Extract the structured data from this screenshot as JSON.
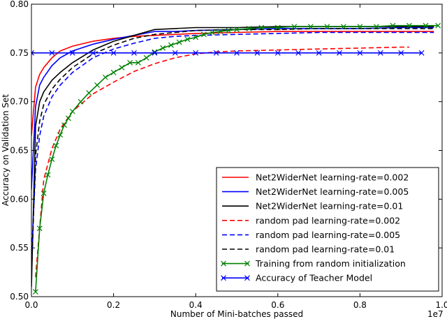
{
  "chart_data": {
    "type": "line",
    "title": "",
    "xlabel": "Number of Mini-batches passed",
    "ylabel": "Accuracy on Validation Set",
    "x_offset_label": "1e7",
    "xlim": [
      0.0,
      1.0
    ],
    "ylim": [
      0.5,
      0.8
    ],
    "x_scale_factor": 10000000,
    "xticks": [
      "0.0",
      "0.2",
      "0.4",
      "0.6",
      "0.8",
      "1.0"
    ],
    "yticks": [
      "0.50",
      "0.55",
      "0.60",
      "0.65",
      "0.70",
      "0.75",
      "0.80"
    ],
    "grid": false,
    "legend_position": "lower-right",
    "series": [
      {
        "name": "Net2WiderNet learning-rate=0.002",
        "color": "#ff0000",
        "dash": "solid",
        "marker": "none",
        "x": [
          0.0,
          0.01,
          0.02,
          0.03,
          0.05,
          0.07,
          0.1,
          0.15,
          0.2,
          0.25,
          0.3,
          0.35,
          0.4,
          0.5,
          0.6,
          0.7,
          0.8,
          0.9,
          0.98
        ],
        "y": [
          0.665,
          0.715,
          0.728,
          0.735,
          0.745,
          0.752,
          0.757,
          0.762,
          0.765,
          0.767,
          0.768,
          0.769,
          0.77,
          0.771,
          0.772,
          0.772,
          0.772,
          0.772,
          0.772
        ]
      },
      {
        "name": "Net2WiderNet learning-rate=0.005",
        "color": "#0000ff",
        "dash": "solid",
        "marker": "none",
        "x": [
          0.0,
          0.01,
          0.02,
          0.03,
          0.05,
          0.07,
          0.1,
          0.15,
          0.2,
          0.25,
          0.3,
          0.35,
          0.4,
          0.5,
          0.6,
          0.7,
          0.8,
          0.9,
          0.98
        ],
        "y": [
          0.61,
          0.695,
          0.717,
          0.725,
          0.737,
          0.745,
          0.752,
          0.759,
          0.764,
          0.768,
          0.772,
          0.772,
          0.773,
          0.774,
          0.775,
          0.775,
          0.775,
          0.776,
          0.776
        ]
      },
      {
        "name": "Net2WiderNet learning-rate=0.01",
        "color": "#000000",
        "dash": "solid",
        "marker": "none",
        "x": [
          0.0,
          0.01,
          0.02,
          0.03,
          0.05,
          0.07,
          0.1,
          0.15,
          0.2,
          0.25,
          0.3,
          0.35,
          0.4,
          0.5,
          0.6,
          0.7,
          0.8,
          0.9,
          0.98
        ],
        "y": [
          0.51,
          0.675,
          0.7,
          0.71,
          0.722,
          0.73,
          0.74,
          0.753,
          0.762,
          0.768,
          0.774,
          0.775,
          0.776,
          0.776,
          0.777,
          0.777,
          0.777,
          0.777,
          0.777
        ]
      },
      {
        "name": "random pad learning-rate=0.002",
        "color": "#ff0000",
        "dash": "dashed",
        "marker": "none",
        "x": [
          0.01,
          0.03,
          0.05,
          0.07,
          0.1,
          0.15,
          0.2,
          0.25,
          0.3,
          0.35,
          0.4,
          0.45,
          0.5,
          0.6,
          0.7,
          0.8,
          0.9,
          0.92
        ],
        "y": [
          0.52,
          0.62,
          0.652,
          0.672,
          0.69,
          0.708,
          0.72,
          0.731,
          0.739,
          0.745,
          0.749,
          0.751,
          0.752,
          0.753,
          0.754,
          0.755,
          0.756,
          0.756
        ]
      },
      {
        "name": "random pad learning-rate=0.005",
        "color": "#0000ff",
        "dash": "dashed",
        "marker": "none",
        "x": [
          0.0,
          0.01,
          0.02,
          0.03,
          0.05,
          0.07,
          0.1,
          0.15,
          0.2,
          0.25,
          0.3,
          0.35,
          0.4,
          0.5,
          0.6,
          0.7,
          0.8,
          0.9,
          0.98
        ],
        "y": [
          0.54,
          0.63,
          0.665,
          0.685,
          0.705,
          0.717,
          0.73,
          0.745,
          0.754,
          0.76,
          0.765,
          0.767,
          0.768,
          0.769,
          0.77,
          0.771,
          0.771,
          0.771,
          0.771
        ]
      },
      {
        "name": "random pad learning-rate=0.01",
        "color": "#000000",
        "dash": "dashed",
        "marker": "none",
        "x": [
          0.0,
          0.01,
          0.02,
          0.03,
          0.05,
          0.07,
          0.1,
          0.15,
          0.2,
          0.25,
          0.3,
          0.35,
          0.4,
          0.5,
          0.6,
          0.7,
          0.8,
          0.9,
          0.98
        ],
        "y": [
          0.52,
          0.645,
          0.68,
          0.697,
          0.713,
          0.723,
          0.735,
          0.749,
          0.758,
          0.765,
          0.769,
          0.771,
          0.773,
          0.774,
          0.774,
          0.775,
          0.775,
          0.775,
          0.775
        ]
      },
      {
        "name": "Training from random initialization",
        "color": "#008000",
        "dash": "solid",
        "marker": "x",
        "x": [
          0.01,
          0.02,
          0.03,
          0.04,
          0.05,
          0.06,
          0.07,
          0.08,
          0.09,
          0.1,
          0.12,
          0.14,
          0.16,
          0.18,
          0.2,
          0.22,
          0.24,
          0.26,
          0.28,
          0.3,
          0.32,
          0.34,
          0.36,
          0.38,
          0.4,
          0.42,
          0.44,
          0.46,
          0.48,
          0.5,
          0.53,
          0.56,
          0.6,
          0.64,
          0.68,
          0.72,
          0.76,
          0.8,
          0.84,
          0.88,
          0.92,
          0.96,
          0.99
        ],
        "y": [
          0.505,
          0.57,
          0.606,
          0.625,
          0.641,
          0.655,
          0.666,
          0.676,
          0.683,
          0.69,
          0.7,
          0.709,
          0.717,
          0.725,
          0.73,
          0.735,
          0.74,
          0.74,
          0.745,
          0.751,
          0.755,
          0.758,
          0.761,
          0.764,
          0.766,
          0.769,
          0.771,
          0.772,
          0.773,
          0.774,
          0.775,
          0.776,
          0.776,
          0.777,
          0.777,
          0.777,
          0.777,
          0.777,
          0.777,
          0.778,
          0.778,
          0.778,
          0.778
        ]
      },
      {
        "name": "Accuracy of Teacher Model",
        "color": "#0000ff",
        "dash": "solid",
        "marker": "x",
        "x": [
          0.0,
          0.05,
          0.1,
          0.15,
          0.2,
          0.25,
          0.3,
          0.35,
          0.4,
          0.45,
          0.5,
          0.55,
          0.6,
          0.65,
          0.7,
          0.75,
          0.8,
          0.85,
          0.9,
          0.95
        ],
        "y": [
          0.75,
          0.75,
          0.75,
          0.75,
          0.75,
          0.75,
          0.75,
          0.75,
          0.75,
          0.75,
          0.75,
          0.75,
          0.75,
          0.75,
          0.75,
          0.75,
          0.75,
          0.75,
          0.75,
          0.75
        ]
      }
    ]
  }
}
